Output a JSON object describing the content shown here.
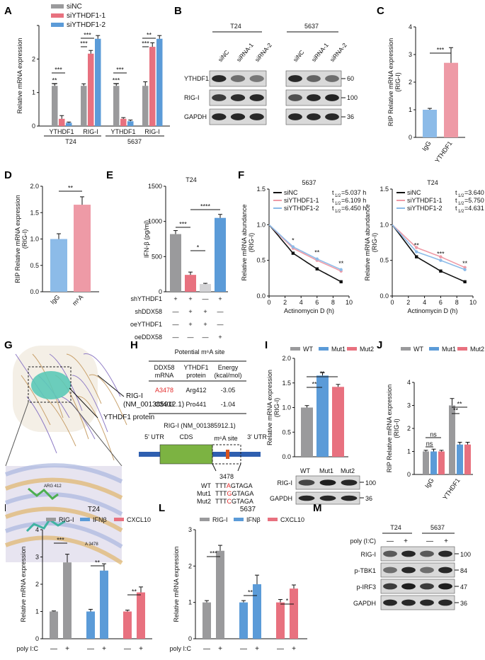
{
  "panel_letters": [
    "A",
    "B",
    "C",
    "D",
    "E",
    "F",
    "G",
    "H",
    "I",
    "J",
    "K",
    "L",
    "M"
  ],
  "colors": {
    "grey": "#9a9a9c",
    "red": "#e8717f",
    "blue": "#5b9bd8",
    "lightblue": "#8cbbe8",
    "pink": "#ee9aa6",
    "lightgrey": "#d4d4d6",
    "green": "#7cb342"
  },
  "chart_data": [
    {
      "panel": "A",
      "type": "bar",
      "legend": [
        "siNC",
        "siYTHDF1-1",
        "siYTHDF1-2"
      ],
      "ylabel": "Relative mRNA expression",
      "ylim": [
        0,
        2.5
      ],
      "yticks": [
        "0",
        "1",
        "2"
      ],
      "groups": [
        "YTHDF1",
        "RIG-I",
        "YTHDF1",
        "RIG-I"
      ],
      "cells": [
        "T24",
        "5637"
      ],
      "series": [
        {
          "name": "siNC",
          "values": [
            1.0,
            1.0,
            1.0,
            1.0
          ],
          "errors": [
            0.05,
            0.05,
            0.05,
            0.1
          ]
        },
        {
          "name": "siYTHDF1-1",
          "values": [
            0.18,
            1.8,
            0.18,
            1.97
          ],
          "errors": [
            0.08,
            0.08,
            0.03,
            0.1
          ]
        },
        {
          "name": "siYTHDF1-2",
          "values": [
            0.08,
            2.17,
            0.12,
            2.17
          ],
          "errors": [
            0.02,
            0.08,
            0.03,
            0.08
          ]
        }
      ],
      "sig": [
        "***",
        "**",
        "***",
        "***",
        "***",
        "***",
        "**",
        "***"
      ]
    },
    {
      "panel": "C",
      "type": "bar",
      "ylabel": "RIP Relative mRNA expression",
      "ylabel2": "(RIG-I)",
      "ylim": [
        0,
        4
      ],
      "yticks": [
        "0",
        "1",
        "2",
        "3",
        "4"
      ],
      "categories": [
        "IgG",
        "YTHDF1"
      ],
      "values": [
        1.0,
        2.7
      ],
      "errors": [
        0.05,
        0.55
      ],
      "sig": "***"
    },
    {
      "panel": "D",
      "type": "bar",
      "ylabel": "RIP Relative mRNA expression",
      "ylabel2": "(RIG-I)",
      "ylim": [
        0,
        2.0
      ],
      "yticks": [
        "0.0",
        "0.5",
        "1.0",
        "1.5",
        "2.0"
      ],
      "categories": [
        "IgG",
        "m⁶A"
      ],
      "values": [
        1.0,
        1.65
      ],
      "errors": [
        0.1,
        0.15
      ],
      "sig": "**"
    },
    {
      "panel": "E",
      "type": "bar",
      "title": "T24",
      "ylabel": "IFN-β (pg/ml)",
      "ylim": [
        0,
        1500
      ],
      "yticks": [
        "0",
        "500",
        "1000",
        "1500"
      ],
      "values": [
        820,
        240,
        110,
        1050
      ],
      "errors": [
        50,
        40,
        10,
        50
      ],
      "sig": [
        "***",
        "*",
        "****"
      ],
      "table_rows": [
        {
          "label": "shYTHDF1",
          "marks": [
            "+",
            "+",
            "—",
            "+"
          ]
        },
        {
          "label": "shDDX58",
          "marks": [
            "—",
            "+",
            "+",
            "—"
          ]
        },
        {
          "label": "oeYTHDF1",
          "marks": [
            "—",
            "+",
            "+",
            "—"
          ]
        },
        {
          "label": "oeDDX58",
          "marks": [
            "—",
            "—",
            "—",
            "+"
          ]
        }
      ]
    },
    {
      "panel": "F1",
      "type": "line",
      "title": "5637",
      "ylabel": "Relative mRNA abundance",
      "ylabel2": "(RIG-I)",
      "xlabel": "Actinomycin D (h)",
      "xlim": [
        0,
        10
      ],
      "ylim": [
        0,
        1.5
      ],
      "xticks": [
        "0",
        "2",
        "4",
        "6",
        "8",
        "10"
      ],
      "yticks": [
        "0.0",
        "0.5",
        "1.0",
        "1.5"
      ],
      "x": [
        0,
        3,
        6,
        9
      ],
      "series": [
        {
          "name": "siNC",
          "values": [
            1.0,
            0.6,
            0.38,
            0.2
          ],
          "half_life": "=5.037 h"
        },
        {
          "name": "siYTHDF1-1",
          "values": [
            1.0,
            0.67,
            0.5,
            0.35
          ],
          "half_life": "=6.109 h"
        },
        {
          "name": "siYTHDF1-2",
          "values": [
            1.0,
            0.69,
            0.52,
            0.37
          ],
          "half_life": "=6.450 h"
        }
      ],
      "sig": [
        "*",
        "**",
        "**"
      ]
    },
    {
      "panel": "F2",
      "type": "line",
      "title": "T24",
      "ylabel": "Relative mRNA abundance",
      "ylabel2": "(RIG-I)",
      "xlabel": "Actinomycin D (h)",
      "xlim": [
        0,
        10
      ],
      "ylim": [
        0,
        1.5
      ],
      "xticks": [
        "0",
        "2",
        "4",
        "6",
        "8",
        "10"
      ],
      "yticks": [
        "0.0",
        "0.5",
        "1.0",
        "1.5"
      ],
      "x": [
        0,
        3,
        6,
        9
      ],
      "series": [
        {
          "name": "siNC",
          "values": [
            1.0,
            0.55,
            0.35,
            0.2
          ],
          "half_life": "=3.640 h"
        },
        {
          "name": "siYTHDF1-1",
          "values": [
            1.0,
            0.68,
            0.55,
            0.4
          ],
          "half_life": "=5.750 h"
        },
        {
          "name": "siYTHDF1-2",
          "values": [
            1.0,
            0.62,
            0.5,
            0.37
          ],
          "half_life": "=4.631 h"
        }
      ],
      "sig": [
        "**",
        "***",
        "**"
      ]
    },
    {
      "panel": "I",
      "type": "bar",
      "legend": [
        "WT",
        "Mut1",
        "Mut2"
      ],
      "ylabel": "Relative mRNA expression",
      "ylabel2": "(RIG-I)",
      "ylim": [
        0,
        2.0
      ],
      "yticks": [
        "0.0",
        "0.5",
        "1.0",
        "1.5",
        "2.0"
      ],
      "categories": [
        "WT",
        "Mut1",
        "Mut2"
      ],
      "values": [
        1.0,
        1.65,
        1.42
      ],
      "errors": [
        0.04,
        0.06,
        0.05
      ],
      "sig": [
        "**",
        "**"
      ]
    },
    {
      "panel": "J",
      "type": "bar",
      "legend": [
        "WT",
        "Mut1",
        "Mut2"
      ],
      "ylabel": "RIP Relative mRNA expression",
      "ylabel2": "(RIG-I)",
      "ylim": [
        0,
        4
      ],
      "yticks": [
        "0",
        "1",
        "2",
        "3",
        "4"
      ],
      "groups": [
        "IgG",
        "YTHDF1"
      ],
      "series": [
        {
          "name": "WT",
          "values": [
            1.0,
            3.0
          ],
          "errors": [
            0.05,
            0.3
          ]
        },
        {
          "name": "Mut1",
          "values": [
            1.0,
            1.3
          ],
          "errors": [
            0.1,
            0.1
          ]
        },
        {
          "name": "Mut2",
          "values": [
            1.0,
            1.3
          ],
          "errors": [
            0.05,
            0.1
          ]
        }
      ],
      "sig": [
        "ns",
        "ns",
        "**",
        "**"
      ]
    },
    {
      "panel": "K",
      "type": "bar",
      "title": "T24",
      "legend": [
        "RIG-I",
        "IFNβ",
        "CXCL10"
      ],
      "ylabel": "Relative mRNA expression",
      "ylim": [
        0,
        4
      ],
      "yticks": [
        "0",
        "1",
        "2",
        "3",
        "4"
      ],
      "series": [
        {
          "name": "RIG-I",
          "values": [
            1.0,
            2.8
          ],
          "errors": [
            0.02,
            0.3
          ]
        },
        {
          "name": "IFNβ",
          "values": [
            1.0,
            2.5
          ],
          "errors": [
            0.08,
            0.25
          ]
        },
        {
          "name": "CXCL10",
          "values": [
            1.0,
            1.7
          ],
          "errors": [
            0.05,
            0.2
          ]
        }
      ],
      "sig": [
        "***",
        "**",
        "**"
      ],
      "xrow_label": "poly I:C",
      "xrow_marks": [
        "—",
        "+"
      ]
    },
    {
      "panel": "L",
      "type": "bar",
      "title": "5637",
      "legend": [
        "RIG-I",
        "IFNβ",
        "CXCL10"
      ],
      "ylabel": "Relative mRNA expression",
      "ylim": [
        0,
        3
      ],
      "yticks": [
        "0",
        "1",
        "2",
        "3"
      ],
      "series": [
        {
          "name": "RIG-I",
          "values": [
            1.0,
            2.42
          ],
          "errors": [
            0.05,
            0.15
          ]
        },
        {
          "name": "IFNβ",
          "values": [
            1.0,
            1.5
          ],
          "errors": [
            0.05,
            0.25
          ]
        },
        {
          "name": "CXCL10",
          "values": [
            1.0,
            1.38
          ],
          "errors": [
            0.08,
            0.1
          ]
        }
      ],
      "sig": [
        "***",
        "**",
        "*"
      ],
      "xrow_label": "poly I:C",
      "xrow_marks": [
        "—",
        "+"
      ]
    }
  ],
  "blot_B": {
    "cells": [
      "T24",
      "5637"
    ],
    "lanes": [
      "siNC",
      "siRNA-1",
      "siRNA-2",
      "siNC",
      "siRNA-1",
      "siRNA-2"
    ],
    "proteins": [
      "YTHDF1",
      "RIG-I",
      "GAPDH"
    ],
    "kda": [
      "60",
      "100",
      "36"
    ]
  },
  "panel_G": {
    "label1": "RIG-I",
    "label2": "(NM_001385912.1)",
    "label3": "YTHDF1 protein",
    "res1": "ARG 412",
    "res2": "A 3478"
  },
  "panel_H": {
    "title": "Potential m⁶A site",
    "headers": [
      "DDX58 mRNA",
      "YTHDF1 protein",
      "Energy (kcal/mol)"
    ],
    "header_lines": [
      [
        "DDX58",
        "mRNA"
      ],
      [
        "YTHDF1",
        "protein"
      ],
      [
        "Energy",
        "(kcal/mol)"
      ]
    ],
    "rows": [
      [
        "A3478",
        "Arg412",
        "-3.05"
      ],
      [
        "C3403",
        "Pro441",
        "-1.04"
      ]
    ],
    "diagram_title": "RIG-I (NM_001385912.1)",
    "utr5": "5' UTR",
    "cds": "CDS",
    "site": "m⁶A site",
    "utr3": "3' UTR",
    "pos": "3478",
    "seqs": [
      {
        "name": "WT",
        "pre": "TTT",
        "mut": "A",
        "post": "GTAGA"
      },
      {
        "name": "Mut1",
        "pre": "TTT",
        "mut": "G",
        "post": "GTAGA"
      },
      {
        "name": "Mut2",
        "pre": "TTT",
        "mut": "C",
        "post": "GTAGA"
      }
    ]
  },
  "blot_I": {
    "lanes": [
      "WT",
      "Mut1",
      "Mut2"
    ],
    "proteins": [
      "RIG-I",
      "GAPDH"
    ],
    "kda": [
      "100",
      "36"
    ]
  },
  "blot_M": {
    "cells": [
      "T24",
      "5637"
    ],
    "treat_label": "poly (I:C)",
    "marks": [
      "—",
      "+",
      "—",
      "+"
    ],
    "proteins": [
      "RIG-I",
      "p-TBK1",
      "p-IRF3",
      "GAPDH"
    ],
    "kda": [
      "100",
      "84",
      "47",
      "36"
    ]
  }
}
